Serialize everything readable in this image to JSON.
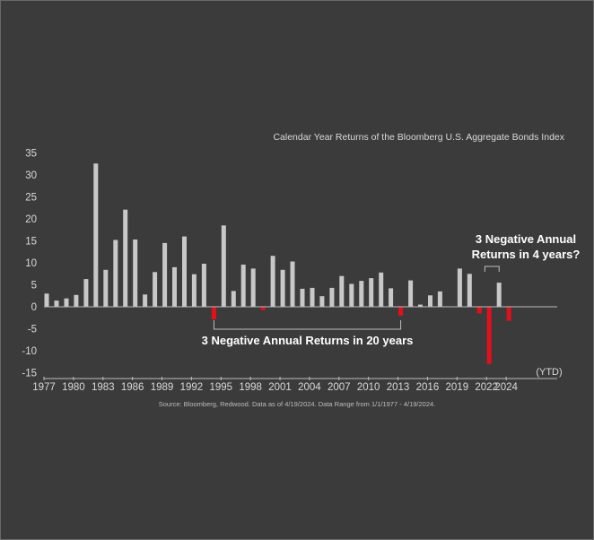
{
  "chart_data": {
    "type": "bar",
    "title": "Calendar Year Returns of the Bloomberg U.S. Aggregate Bonds Index",
    "xlabel": "",
    "ylabel": "",
    "ylim": [
      -15,
      35
    ],
    "yticks": [
      35,
      30,
      25,
      20,
      15,
      10,
      5,
      0,
      -5,
      -10,
      -15
    ],
    "xticks": [
      "1977",
      "1980",
      "1983",
      "1986",
      "1989",
      "1992",
      "1995",
      "1998",
      "2001",
      "2004",
      "2007",
      "2010",
      "2013",
      "2016",
      "2019",
      "2022",
      "2024"
    ],
    "ytd_label": "(YTD)",
    "categories": [
      "1977",
      "1978",
      "1979",
      "1980",
      "1981",
      "1982",
      "1983",
      "1984",
      "1985",
      "1986",
      "1987",
      "1988",
      "1989",
      "1990",
      "1991",
      "1992",
      "1993",
      "1994",
      "1995",
      "1996",
      "1997",
      "1998",
      "1999",
      "2000",
      "2001",
      "2002",
      "2003",
      "2004",
      "2005",
      "2006",
      "2007",
      "2008",
      "2009",
      "2010",
      "2011",
      "2012",
      "2013",
      "2014",
      "2015",
      "2016",
      "2017",
      "2018",
      "2019",
      "2020",
      "2021",
      "2022",
      "2023",
      "2024"
    ],
    "values": [
      3.0,
      1.4,
      1.9,
      2.7,
      6.3,
      32.6,
      8.4,
      15.2,
      22.1,
      15.3,
      2.8,
      7.9,
      14.5,
      9.0,
      16.0,
      7.4,
      9.8,
      -2.9,
      18.5,
      3.6,
      9.6,
      8.7,
      -0.8,
      11.6,
      8.4,
      10.3,
      4.1,
      4.3,
      2.4,
      4.3,
      7.0,
      5.2,
      5.9,
      6.5,
      7.8,
      4.2,
      -2.0,
      6.0,
      0.5,
      2.6,
      3.5,
      0.0,
      8.7,
      7.5,
      -1.5,
      -13.0,
      5.5,
      -3.2
    ],
    "colors": {
      "positive": "#c8c8c8",
      "negative": "#e3101b"
    },
    "grid": false,
    "legend": "none",
    "annotations": [
      {
        "text": "3 Negative Annual Returns in 20 years",
        "from": "1994",
        "to": "2013"
      },
      {
        "text_line1": "3 Negative Annual",
        "text_line2": "Returns in 4 years?",
        "from": "2021",
        "to": "2023"
      }
    ]
  },
  "source_note": "Source: Bloomberg, Redwood. Data as of 4/19/2024. Data Range from 1/1/1977 - 4/19/2024.",
  "colors": {
    "background": "#3b3b3b",
    "text": "#d9d9d9",
    "white": "#ffffff",
    "axis": "#bdbdbd"
  }
}
